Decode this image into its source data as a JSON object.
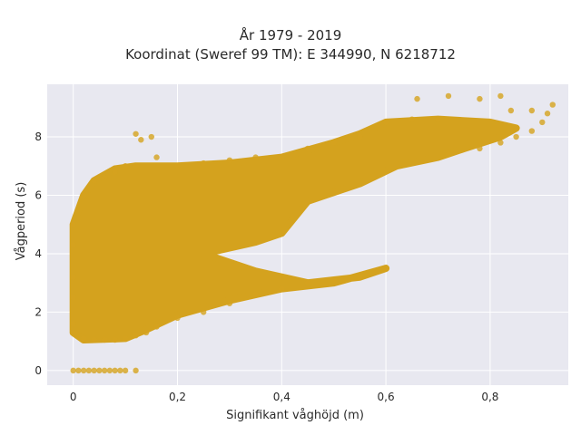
{
  "chart_data": {
    "type": "scatter",
    "title": "År 1979 - 2019",
    "subtitle": "Koordinat (Sweref 99 TM): E 344990, N 6218712",
    "xlabel": "Signifikant våghöjd (m)",
    "ylabel": "Vågperiod (s)",
    "xlim": [
      -0.05,
      0.95
    ],
    "ylim": [
      -0.5,
      9.8
    ],
    "xticks": [
      0,
      0.2,
      0.4,
      0.6,
      0.8
    ],
    "xtick_labels": [
      "0",
      "0,2",
      "0,4",
      "0,6",
      "0,8"
    ],
    "yticks": [
      0,
      2,
      4,
      6,
      8
    ],
    "ytick_labels": [
      "0",
      "2",
      "4",
      "6",
      "8"
    ],
    "grid": true,
    "legend": "none",
    "marker_color": "#d4a21e",
    "background": "#e8e8f0",
    "series": [
      {
        "points": [
          [
            0.0,
            0.0
          ],
          [
            0.01,
            0.0
          ],
          [
            0.02,
            0.0
          ],
          [
            0.03,
            0.0
          ],
          [
            0.04,
            0.0
          ],
          [
            0.05,
            0.0
          ],
          [
            0.06,
            0.0
          ],
          [
            0.07,
            0.0
          ],
          [
            0.08,
            0.0
          ],
          [
            0.09,
            0.0
          ],
          [
            0.1,
            0.0
          ],
          [
            0.12,
            0.0
          ],
          [
            0.0,
            1.3
          ],
          [
            0.0,
            1.6
          ],
          [
            0.0,
            2.5
          ],
          [
            0.0,
            3.2
          ],
          [
            0.0,
            4.3
          ],
          [
            0.0,
            5.0
          ],
          [
            0.02,
            1.1
          ],
          [
            0.04,
            1.05
          ],
          [
            0.06,
            1.05
          ],
          [
            0.08,
            1.05
          ],
          [
            0.1,
            1.1
          ],
          [
            0.12,
            1.2
          ],
          [
            0.14,
            1.3
          ],
          [
            0.16,
            1.5
          ],
          [
            0.2,
            1.8
          ],
          [
            0.25,
            2.0
          ],
          [
            0.3,
            2.3
          ],
          [
            0.35,
            2.6
          ],
          [
            0.4,
            2.8
          ],
          [
            0.45,
            3.0
          ],
          [
            0.5,
            3.1
          ],
          [
            0.55,
            3.2
          ],
          [
            0.6,
            3.5
          ],
          [
            0.02,
            6.0
          ],
          [
            0.04,
            6.5
          ],
          [
            0.06,
            6.6
          ],
          [
            0.08,
            6.8
          ],
          [
            0.1,
            7.0
          ],
          [
            0.12,
            7.0
          ],
          [
            0.13,
            7.9
          ],
          [
            0.12,
            8.1
          ],
          [
            0.15,
            8.0
          ],
          [
            0.16,
            7.3
          ],
          [
            0.2,
            7.0
          ],
          [
            0.25,
            7.1
          ],
          [
            0.3,
            7.2
          ],
          [
            0.35,
            7.3
          ],
          [
            0.4,
            7.3
          ],
          [
            0.45,
            7.6
          ],
          [
            0.5,
            7.8
          ],
          [
            0.55,
            8.0
          ],
          [
            0.6,
            8.5
          ],
          [
            0.65,
            8.6
          ],
          [
            0.7,
            8.6
          ],
          [
            0.66,
            9.3
          ],
          [
            0.72,
            9.4
          ],
          [
            0.78,
            9.3
          ],
          [
            0.82,
            9.4
          ],
          [
            0.84,
            8.9
          ],
          [
            0.88,
            8.9
          ],
          [
            0.92,
            9.1
          ],
          [
            0.91,
            8.8
          ],
          [
            0.72,
            7.4
          ],
          [
            0.78,
            7.6
          ],
          [
            0.82,
            7.8
          ],
          [
            0.85,
            8.0
          ],
          [
            0.88,
            8.2
          ],
          [
            0.9,
            8.5
          ]
        ]
      }
    ]
  }
}
